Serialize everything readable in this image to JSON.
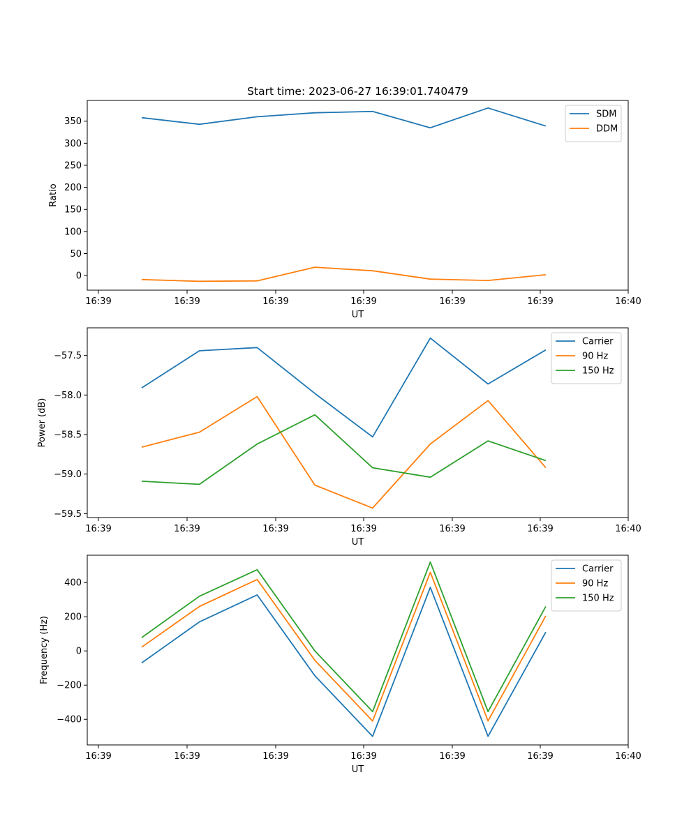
{
  "title": "Start time: 2023-06-27 16:39:01.740479",
  "colors": {
    "series_1": "#1f77b4",
    "series_2": "#ff7f0e",
    "series_3": "#2ca02c"
  },
  "chart_data": [
    {
      "type": "line",
      "title": "Start time: 2023-06-27 16:39:01.740479",
      "xlabel": "UT",
      "ylabel": "Ratio",
      "x_tick_labels": [
        "16:39",
        "16:39",
        "16:39",
        "16:39",
        "16:39",
        "16:39",
        "16:40"
      ],
      "y_ticks": [
        0,
        50,
        100,
        150,
        200,
        250,
        300,
        350
      ],
      "y_tick_labels": [
        "0",
        "50",
        "100",
        "150",
        "200",
        "250",
        "300",
        "350"
      ],
      "ylim": [
        -33,
        397
      ],
      "grid": false,
      "legend": "top-right",
      "x_index": [
        1,
        2,
        3,
        4,
        5,
        6,
        7,
        8
      ],
      "series": [
        {
          "name": "SDM",
          "color": "#1f77b4",
          "values": [
            358,
            343,
            360,
            369,
            372,
            335,
            380,
            339
          ]
        },
        {
          "name": "DDM",
          "color": "#ff7f0e",
          "values": [
            -9,
            -13,
            -12,
            19,
            11,
            -8,
            -11,
            2
          ]
        }
      ]
    },
    {
      "type": "line",
      "xlabel": "UT",
      "ylabel": "Power (dB)",
      "x_tick_labels": [
        "16:39",
        "16:39",
        "16:39",
        "16:39",
        "16:39",
        "16:39",
        "16:40"
      ],
      "y_ticks": [
        -59.5,
        -59.0,
        -58.5,
        -58.0,
        -57.5
      ],
      "y_tick_labels": [
        "−59.5",
        "−59.0",
        "−58.5",
        "−58.0",
        "−57.5"
      ],
      "ylim": [
        -59.55,
        -57.15
      ],
      "grid": false,
      "legend": "top-right",
      "x_index": [
        1,
        2,
        3,
        4,
        5,
        6,
        7,
        8
      ],
      "series": [
        {
          "name": "Carrier",
          "color": "#1f77b4",
          "values": [
            -57.91,
            -57.44,
            -57.4,
            -57.98,
            -58.53,
            -57.28,
            -57.86,
            -57.43
          ]
        },
        {
          "name": "90 Hz",
          "color": "#ff7f0e",
          "values": [
            -58.66,
            -58.47,
            -58.02,
            -59.14,
            -59.43,
            -58.62,
            -58.07,
            -58.92
          ]
        },
        {
          "name": "150 Hz",
          "color": "#2ca02c",
          "values": [
            -59.09,
            -59.13,
            -58.62,
            -58.25,
            -58.92,
            -59.04,
            -58.58,
            -58.83
          ]
        }
      ]
    },
    {
      "type": "line",
      "xlabel": "UT",
      "ylabel": "Frequency (Hz)",
      "x_tick_labels": [
        "16:39",
        "16:39",
        "16:39",
        "16:39",
        "16:39",
        "16:39",
        "16:40"
      ],
      "y_ticks": [
        -400,
        -200,
        0,
        200,
        400
      ],
      "y_tick_labels": [
        "−400",
        "−200",
        "0",
        "200",
        "400"
      ],
      "ylim": [
        -550,
        560
      ],
      "grid": false,
      "legend": "top-right",
      "x_index": [
        1,
        2,
        3,
        4,
        5,
        6,
        7,
        8
      ],
      "series": [
        {
          "name": "Carrier",
          "color": "#1f77b4",
          "values": [
            -70,
            170,
            328,
            -145,
            -500,
            372,
            -500,
            110
          ]
        },
        {
          "name": "90 Hz",
          "color": "#ff7f0e",
          "values": [
            22,
            260,
            418,
            -55,
            -410,
            460,
            -410,
            205
          ]
        },
        {
          "name": "150 Hz",
          "color": "#2ca02c",
          "values": [
            78,
            320,
            475,
            0,
            -355,
            520,
            -355,
            260
          ]
        }
      ]
    }
  ]
}
